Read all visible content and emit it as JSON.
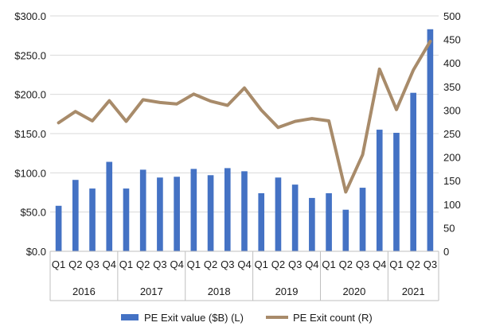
{
  "chart_data": {
    "type": "bar+line",
    "title": "",
    "groups": [
      {
        "label": "2016",
        "quarters": [
          "Q1",
          "Q2",
          "Q3",
          "Q4"
        ]
      },
      {
        "label": "2017",
        "quarters": [
          "Q1",
          "Q2",
          "Q3",
          "Q4"
        ]
      },
      {
        "label": "2018",
        "quarters": [
          "Q1",
          "Q2",
          "Q3",
          "Q4"
        ]
      },
      {
        "label": "2019",
        "quarters": [
          "Q1",
          "Q2",
          "Q3",
          "Q4"
        ]
      },
      {
        "label": "2020",
        "quarters": [
          "Q1",
          "Q2",
          "Q3",
          "Q4"
        ]
      },
      {
        "label": "2021",
        "quarters": [
          "Q1",
          "Q2",
          "Q3"
        ]
      }
    ],
    "series": [
      {
        "name": "PE Exit value ($B) (L)",
        "type": "bar",
        "axis": "left",
        "color": "#4472C4",
        "values": [
          58,
          91,
          80,
          114,
          80,
          104,
          94,
          95,
          105,
          97,
          106,
          102,
          74,
          94,
          85,
          68,
          74,
          53,
          81,
          155,
          151,
          202,
          283
        ]
      },
      {
        "name": "PE Exit count (R)",
        "type": "line",
        "axis": "right",
        "color": "#A88B6A",
        "values": [
          273,
          297,
          277,
          320,
          276,
          322,
          316,
          313,
          334,
          319,
          310,
          347,
          300,
          263,
          276,
          282,
          277,
          126,
          205,
          387,
          301,
          385,
          446
        ]
      }
    ],
    "y_left": {
      "min": 0,
      "max": 300,
      "ticks": [
        0,
        50,
        100,
        150,
        200,
        250,
        300
      ],
      "tick_labels": [
        "$0.0",
        "$50.0",
        "$100.0",
        "$150.0",
        "$200.0",
        "$250.0",
        "$300.0"
      ]
    },
    "y_right": {
      "min": 0,
      "max": 500,
      "ticks": [
        0,
        50,
        100,
        150,
        200,
        250,
        300,
        350,
        400,
        450,
        500
      ],
      "tick_labels": [
        "0",
        "50",
        "100",
        "150",
        "200",
        "250",
        "300",
        "350",
        "400",
        "450",
        "500"
      ]
    },
    "grid": "horizontal",
    "legend_position": "bottom",
    "legend": [
      {
        "label": "PE Exit value ($B) (L)",
        "kind": "bar",
        "color": "#4472C4"
      },
      {
        "label": "PE Exit count (R)",
        "kind": "line",
        "color": "#A88B6A"
      }
    ]
  }
}
